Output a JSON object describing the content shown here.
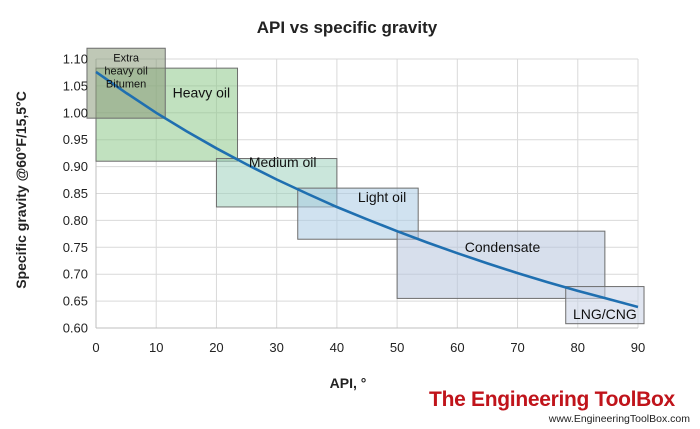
{
  "chart_data": {
    "type": "line",
    "title": "API vs specific gravity",
    "xlabel": "API, °",
    "ylabel": "Specific gravity @60°F/15,5°C",
    "xlim": [
      0,
      90
    ],
    "ylim": [
      0.6,
      1.1
    ],
    "x_ticks": [
      0,
      10,
      20,
      30,
      40,
      50,
      60,
      70,
      80,
      90
    ],
    "y_ticks": [
      "0.60",
      "0.65",
      "0.70",
      "0.75",
      "0.80",
      "0.85",
      "0.90",
      "0.95",
      "1.00",
      "1.05",
      "1.10"
    ],
    "grid": true,
    "legend": "none",
    "series": [
      {
        "color": "#1f6fb0",
        "x": [
          0,
          5,
          10,
          15,
          20,
          25,
          30,
          35,
          40,
          45,
          50,
          55,
          60,
          65,
          70,
          75,
          80,
          85,
          90
        ],
        "y": [
          1.076,
          1.037,
          1.0,
          0.966,
          0.934,
          0.904,
          0.876,
          0.85,
          0.825,
          0.802,
          0.78,
          0.759,
          0.739,
          0.72,
          0.702,
          0.685,
          0.669,
          0.654,
          0.639
        ]
      }
    ],
    "regions": [
      {
        "key": "heavy",
        "label_lines": [
          "Heavy oil"
        ],
        "x": [
          0,
          23.5
        ],
        "y": [
          0.91,
          1.083
        ],
        "fill": "#8ec98a",
        "label_x": 17.5,
        "label_y": 1.028
      },
      {
        "key": "extra",
        "label_lines": [
          "Extra",
          "heavy oil",
          "Bitumen"
        ],
        "x": [
          -1.5,
          11.5
        ],
        "y": [
          0.99,
          1.12
        ],
        "fill": "#8a9a7a",
        "label_x": 5,
        "label_y": 1.095
      },
      {
        "key": "medium",
        "label_lines": [
          "Medium oil"
        ],
        "x": [
          20,
          40
        ],
        "y": [
          0.825,
          0.915
        ],
        "fill": "#9fd1be",
        "label_x": 31,
        "label_y": 0.899
      },
      {
        "key": "light",
        "label_lines": [
          "Light oil"
        ],
        "x": [
          33.5,
          53.5
        ],
        "y": [
          0.765,
          0.86
        ],
        "fill": "#a9cbe3",
        "label_x": 47.5,
        "label_y": 0.834
      },
      {
        "key": "condensate",
        "label_lines": [
          "Condensate"
        ],
        "x": [
          50,
          84.5
        ],
        "y": [
          0.655,
          0.78
        ],
        "fill": "#b7c4dd",
        "label_x": 67.5,
        "label_y": 0.741
      },
      {
        "key": "lng",
        "label_lines": [
          "LNG/CNG"
        ],
        "x": [
          78,
          91
        ],
        "y": [
          0.608,
          0.677
        ],
        "fill": "#c9d1e6",
        "label_x": 84.5,
        "label_y": 0.617
      }
    ]
  },
  "logo": {
    "name": "The Engineering ToolBox",
    "url": "www.EngineeringToolBox.com"
  }
}
